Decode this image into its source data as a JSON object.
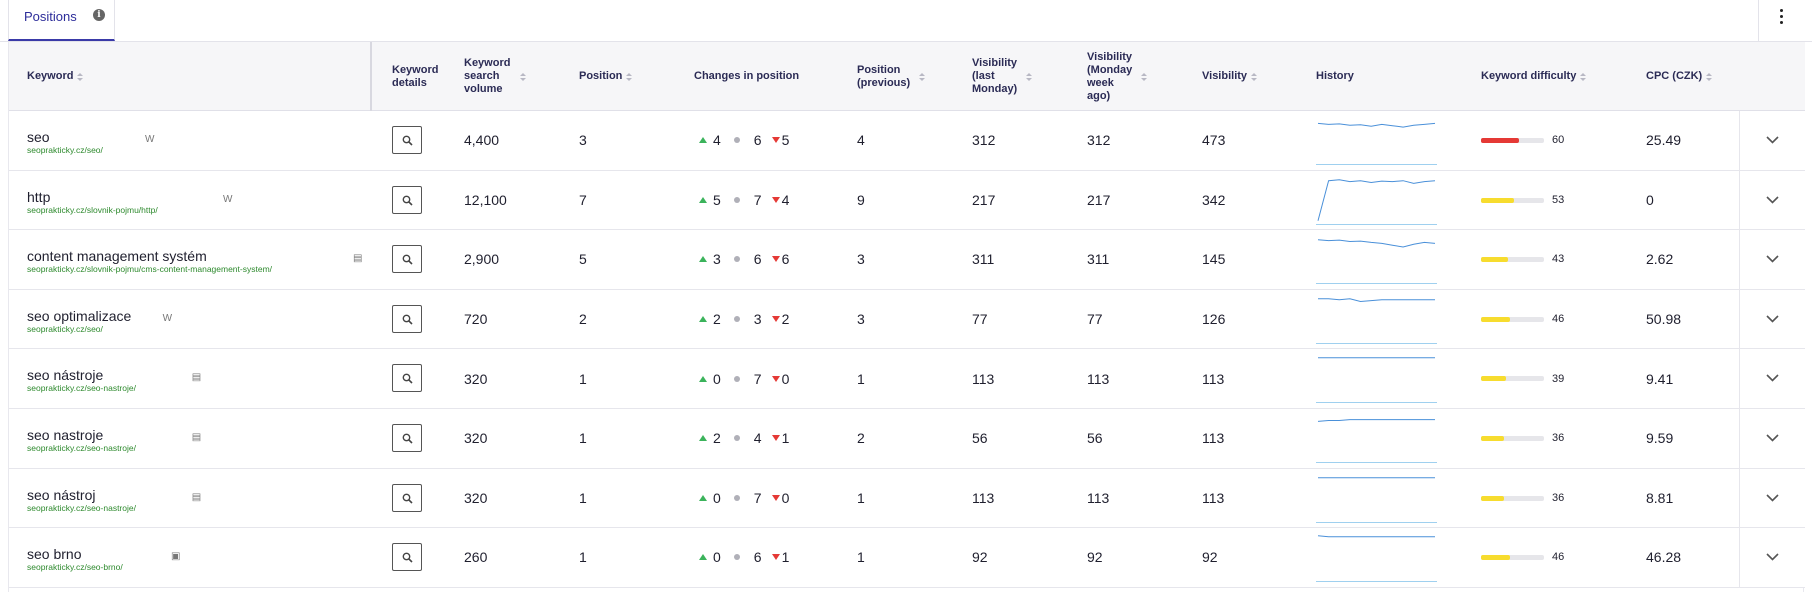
{
  "tab": {
    "label": "Positions",
    "info_icon": "info-icon"
  },
  "menu_icon": "more-vertical-icon",
  "columns": {
    "keyword": "Keyword",
    "keyword_details": "Keyword details",
    "search_volume": "Keyword search volume",
    "position": "Position",
    "changes": "Changes in position",
    "position_prev": "Position (previous)",
    "vis_last_monday": "Visibility (last Monday)",
    "vis_week_ago": "Visibility (Monday week ago)",
    "visibility": "Visibility",
    "history": "History",
    "difficulty": "Keyword difficulty",
    "cpc": "CPC (CZK)"
  },
  "colors": {
    "accent": "#2d2d9a",
    "up": "#3bb35b",
    "down": "#e53935",
    "url": "#2e8a2e",
    "diff_high": "#e53935",
    "diff_mid": "#f7dc2e"
  },
  "rows": [
    {
      "keyword": "seo",
      "url": "seoprakticky.cz/seo/",
      "badge": "W",
      "volume": "4,400",
      "position": "3",
      "up": "4",
      "same": "6",
      "down": "5",
      "prev": "4",
      "vis_last": "312",
      "vis_week": "312",
      "visibility": "473",
      "history": [
        0.14,
        0.16,
        0.15,
        0.18,
        0.17,
        0.2,
        0.16,
        0.19,
        0.22,
        0.18,
        0.16,
        0.14
      ],
      "difficulty": "60",
      "cpc": "25.49"
    },
    {
      "keyword": "http",
      "url": "seoprakticky.cz/slovnik-pojmu/http/",
      "badge": "W",
      "volume": "12,100",
      "position": "7",
      "up": "5",
      "same": "7",
      "down": "4",
      "prev": "9",
      "vis_last": "217",
      "vis_week": "217",
      "visibility": "342",
      "history": [
        0.95,
        0.08,
        0.06,
        0.1,
        0.08,
        0.12,
        0.09,
        0.1,
        0.08,
        0.14,
        0.1,
        0.08
      ],
      "difficulty": "53",
      "cpc": "0"
    },
    {
      "keyword": "content management systém",
      "url": "seoprakticky.cz/slovnik-pojmu/cms-content-management-system/",
      "badge": "news",
      "volume": "2,900",
      "position": "5",
      "up": "3",
      "same": "6",
      "down": "6",
      "prev": "3",
      "vis_last": "311",
      "vis_week": "311",
      "visibility": "145",
      "history": [
        0.08,
        0.1,
        0.09,
        0.12,
        0.11,
        0.14,
        0.16,
        0.2,
        0.24,
        0.18,
        0.14,
        0.16
      ],
      "difficulty": "43",
      "cpc": "2.62"
    },
    {
      "keyword": "seo optimalizace",
      "url": "seoprakticky.cz/seo/",
      "badge": "W",
      "volume": "720",
      "position": "2",
      "up": "2",
      "same": "3",
      "down": "2",
      "prev": "3",
      "vis_last": "77",
      "vis_week": "77",
      "visibility": "126",
      "history": [
        0.06,
        0.06,
        0.08,
        0.06,
        0.12,
        0.1,
        0.08,
        0.08,
        0.08,
        0.08,
        0.08,
        0.08
      ],
      "difficulty": "46",
      "cpc": "50.98"
    },
    {
      "keyword": "seo nástroje",
      "url": "seoprakticky.cz/seo-nastroje/",
      "badge": "news",
      "volume": "320",
      "position": "1",
      "up": "0",
      "same": "7",
      "down": "0",
      "prev": "1",
      "vis_last": "113",
      "vis_week": "113",
      "visibility": "113",
      "history": [
        0.06,
        0.06,
        0.06,
        0.06,
        0.06,
        0.06,
        0.06,
        0.06,
        0.06,
        0.06,
        0.06,
        0.06
      ],
      "difficulty": "39",
      "cpc": "9.41"
    },
    {
      "keyword": "seo nastroje",
      "url": "seoprakticky.cz/seo-nastroje/",
      "badge": "news",
      "volume": "320",
      "position": "1",
      "up": "2",
      "same": "4",
      "down": "1",
      "prev": "2",
      "vis_last": "56",
      "vis_week": "56",
      "visibility": "113",
      "history": [
        0.14,
        0.12,
        0.12,
        0.1,
        0.1,
        0.1,
        0.1,
        0.1,
        0.1,
        0.1,
        0.1,
        0.1
      ],
      "difficulty": "36",
      "cpc": "9.59"
    },
    {
      "keyword": "seo nástroj",
      "url": "seoprakticky.cz/seo-nastroje/",
      "badge": "news",
      "volume": "320",
      "position": "1",
      "up": "0",
      "same": "7",
      "down": "0",
      "prev": "1",
      "vis_last": "113",
      "vis_week": "113",
      "visibility": "113",
      "history": [
        0.06,
        0.06,
        0.06,
        0.06,
        0.06,
        0.06,
        0.06,
        0.06,
        0.06,
        0.06,
        0.06,
        0.06
      ],
      "difficulty": "36",
      "cpc": "8.81"
    },
    {
      "keyword": "seo brno",
      "url": "seoprakticky.cz/seo-brno/",
      "badge": "local",
      "volume": "260",
      "position": "1",
      "up": "0",
      "same": "6",
      "down": "1",
      "prev": "1",
      "vis_last": "92",
      "vis_week": "92",
      "visibility": "92",
      "history": [
        0.04,
        0.06,
        0.06,
        0.06,
        0.06,
        0.06,
        0.06,
        0.06,
        0.06,
        0.06,
        0.06,
        0.06
      ],
      "difficulty": "46",
      "cpc": "46.28"
    }
  ]
}
